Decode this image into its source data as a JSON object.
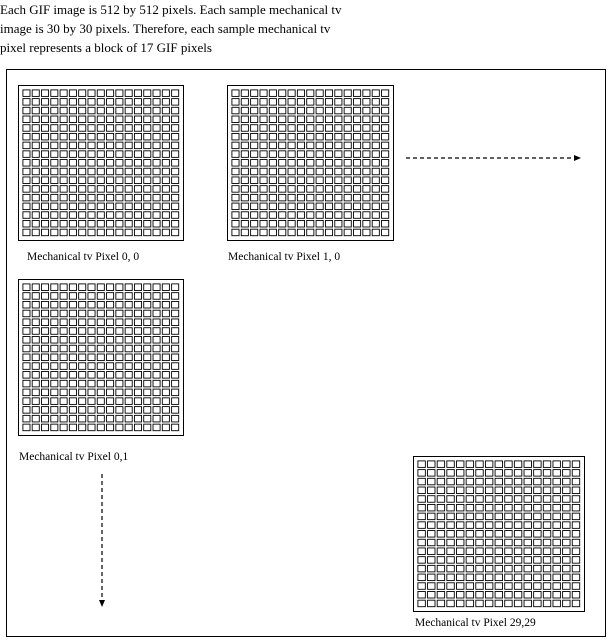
{
  "intro": {
    "line1": "Each GIF image is 512 by 512 pixels. Each sample mechanical tv",
    "line2": "image is 30 by 30 pixels. Therefore, each sample mechanical tv",
    "line3": "pixel represents a block of 17 GIF pixels"
  },
  "pixels": [
    {
      "label": "Mechanical tv Pixel 0, 0"
    },
    {
      "label": "Mechanical tv Pixel 1, 0"
    },
    {
      "label": "Mechanical tv Pixel 0,1"
    },
    {
      "label": "Mechanical tv Pixel 29,29"
    }
  ],
  "grid": {
    "rows": 17,
    "cols": 17
  },
  "arrows": [
    {
      "direction": "right",
      "style": "dashed"
    },
    {
      "direction": "down",
      "style": "dashed"
    }
  ],
  "colors": {
    "line": "#000000",
    "background": "#ffffff"
  }
}
